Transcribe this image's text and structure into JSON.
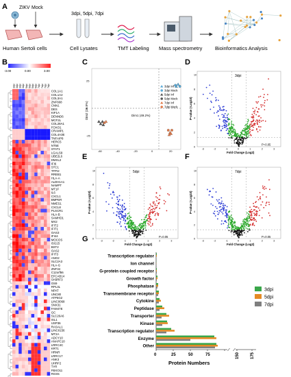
{
  "panel_labels": {
    "a": "A",
    "b": "B",
    "c": "C",
    "d": "D",
    "e": "E",
    "f": "F",
    "g": "G"
  },
  "workflow": {
    "zikv": "ZIKV",
    "mock": "Mock",
    "timepoints": "3dpi, 5dpi, 7dpi",
    "steps": [
      "Human Sertoli cells",
      "Cell Lysates",
      "TMT Labeling",
      "Mass spectrometry",
      "Bioinformatics Analysis"
    ]
  },
  "heatmap": {
    "scale_ticks": [
      "-3.00",
      "0.00",
      "3.00"
    ],
    "column_labels": [
      "3dpi",
      "3dpi",
      "3dpi",
      "3dpi",
      "5dpi",
      "5dpi",
      "5dpi",
      "5dpi",
      "7dpi",
      "7dpi",
      "7dpi",
      "7dpi"
    ],
    "genes": [
      "COL1A1",
      "COL1A2",
      "COL3A1",
      "ZNF668",
      "CNN1",
      "DES",
      "KIF1A",
      "DENND6",
      "MCF2L",
      "COL28A1",
      "FOXO1",
      "CRAMP1",
      "COL4A3E",
      "TNFAIP8",
      "HERC5",
      "NT5E",
      "STAT1",
      "LGALS9",
      "UBE2L6",
      "DMXL2",
      "IFI6",
      "STC1",
      "TFPI2",
      "RREB1",
      "HLA-A",
      "ALDH1A1",
      "NAMPT",
      "MT1F",
      "IL6",
      "CXCL1",
      "BMPER",
      "NMES1",
      "CXCL8",
      "PLSCR1",
      "HLA-B",
      "SAMHD1",
      "MX2",
      "IFIT2",
      "IFIT1",
      "OAS3",
      "IFI44",
      "MOCOS",
      "ISG15",
      "BST2",
      "OAS2",
      "IFIT3",
      "ANO2",
      "SLC2A3",
      "HLA-G",
      "ZNF34",
      "C12orf56",
      "EFCAB14",
      "SH3RF3",
      "OS9",
      "RPL3L",
      "NPAT",
      "UNC80",
      "ATP5G2",
      "LINC0068",
      "SNX31",
      "FAM47E",
      "GC",
      "SLC26A6",
      "ISL1",
      "USP36",
      "RASAL1",
      "LINC0156",
      "MT2A",
      "ADCY10",
      "ANAPC10",
      "LRRC4C",
      "KRT1",
      "HRNR",
      "LRRC17",
      "ANK3",
      "UHRF2",
      "TYR",
      "FBXO11",
      "RGS5"
    ]
  },
  "pca": {
    "xlabel": "Dim1 (49.2%)",
    "ylabel": "Dim2 (29.8%)",
    "legend": [
      "3dpi Inf",
      "3dpi Mock",
      "5dpi Inf",
      "5dpi Mock",
      "7dpi Inf",
      "7dpi Mock"
    ],
    "colors": [
      "#5aa9d6",
      "#5aa9d6",
      "#555555",
      "#555555",
      "#e07a4a",
      "#e07a4a"
    ],
    "ticks_x": [
      "-60",
      "-40",
      "-20",
      "0",
      "20"
    ],
    "ticks_y": [
      "-25",
      "0",
      "25"
    ]
  },
  "volcano_plots": [
    {
      "title": "3dpi",
      "p_label": "P=0.05",
      "xlabel": "Fold Change (Log2)",
      "ylabel": "P-value (-Log10)",
      "ticks_x": [
        "-3",
        "-2",
        "-1",
        "0",
        "1",
        "2",
        "3"
      ],
      "ticks_y": [
        "0",
        "2",
        "4",
        "6",
        "8",
        "10"
      ]
    },
    {
      "title": "5dpi",
      "p_label": "P=0.05",
      "xlabel": "Fold Change (Log2)",
      "ylabel": "P-value (-Log10)",
      "ticks_x": [
        "-3",
        "-2",
        "-1",
        "0",
        "1",
        "2",
        "3"
      ],
      "ticks_y": [
        "0",
        "2",
        "4",
        "6",
        "8",
        "10"
      ]
    },
    {
      "title": "7dpi",
      "p_label": "P=0.05",
      "xlabel": "Fold Change (Log2)",
      "ylabel": "P-value (-Log10)",
      "ticks_x": [
        "-3",
        "-2",
        "-1",
        "0",
        "1",
        "2",
        "3"
      ],
      "ticks_y": [
        "0",
        "2",
        "4",
        "6",
        "8",
        "10"
      ]
    }
  ],
  "chart_data": {
    "type": "bar",
    "orientation": "horizontal",
    "xlabel": "Protein Numbers",
    "categories": [
      "Transcription regulator",
      "Ion channel",
      "G-protein coupled receptor",
      "Growth factor",
      "Phosphatase",
      "Transmembrane receptor",
      "Cytokine",
      "Peptidase",
      "Transporter",
      "Kinase",
      "Transcription regulator",
      "Enzyme",
      "Other"
    ],
    "series": [
      {
        "name": "3dpi",
        "color": "#3aa64a",
        "values": [
          1,
          0,
          1,
          2,
          3,
          4,
          5,
          9,
          15,
          16,
          22,
          85,
          88
        ]
      },
      {
        "name": "5dpi",
        "color": "#e58a24",
        "values": [
          1,
          0,
          1,
          2,
          3,
          4,
          7,
          12,
          19,
          17,
          27,
          88,
          90
        ]
      },
      {
        "name": "7dpi",
        "color": "#7f7f7f",
        "values": [
          0,
          0,
          1,
          1,
          2,
          3,
          4,
          5,
          8,
          9,
          15,
          50,
          86
        ]
      }
    ],
    "xticks": [
      0,
      25,
      50,
      75,
      100,
      150,
      175
    ],
    "xtick_labels": [
      "0",
      "25",
      "50",
      "75",
      "",
      "150",
      "175"
    ],
    "axis_break_at": 100
  }
}
